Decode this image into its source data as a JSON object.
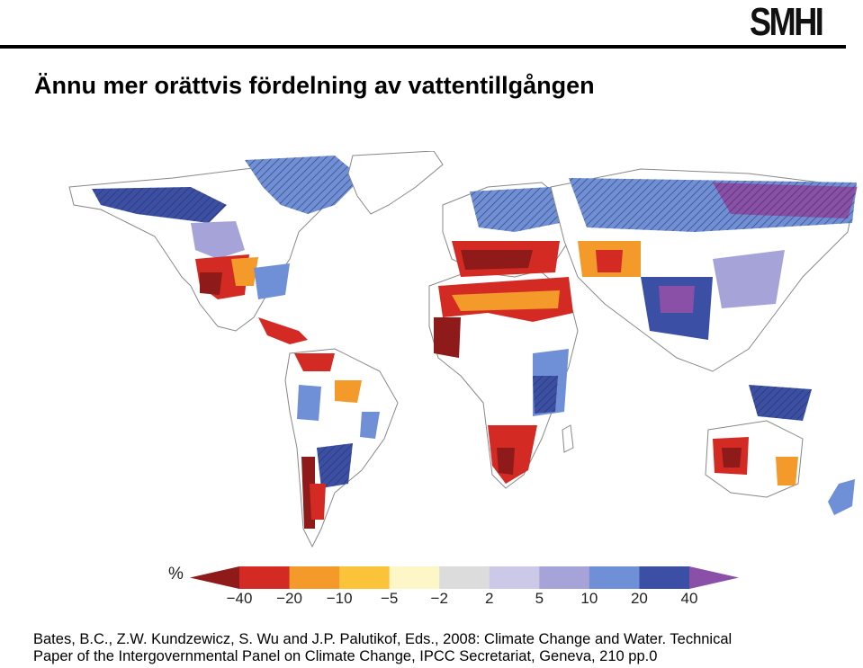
{
  "logo": {
    "text": "SMHI"
  },
  "slide": {
    "title": "Ännu mer orättvis fördelning av vattentillgången"
  },
  "legend": {
    "unit": "%",
    "labels": [
      "−40",
      "−20",
      "−10",
      "−5",
      "−2",
      "2",
      "5",
      "10",
      "20",
      "40"
    ],
    "colors": [
      "#8e1a1a",
      "#d42a24",
      "#f39a2a",
      "#fbc33a",
      "#fdf6c6",
      "#dcdcdc",
      "#cbc8e8",
      "#a6a3d8",
      "#6f8fd6",
      "#3b4fa5",
      "#8a4fa6"
    ]
  },
  "citation": {
    "line1": "Bates, B.C., Z.W. Kundzewicz, S. Wu and J.P. Palutikof, Eds., 2008: Climate Change and Water. Technical",
    "line2": "Paper of the Intergovernmental Panel on Climate Change, IPCC Secretariat, Geneva, 210 pp.0"
  }
}
